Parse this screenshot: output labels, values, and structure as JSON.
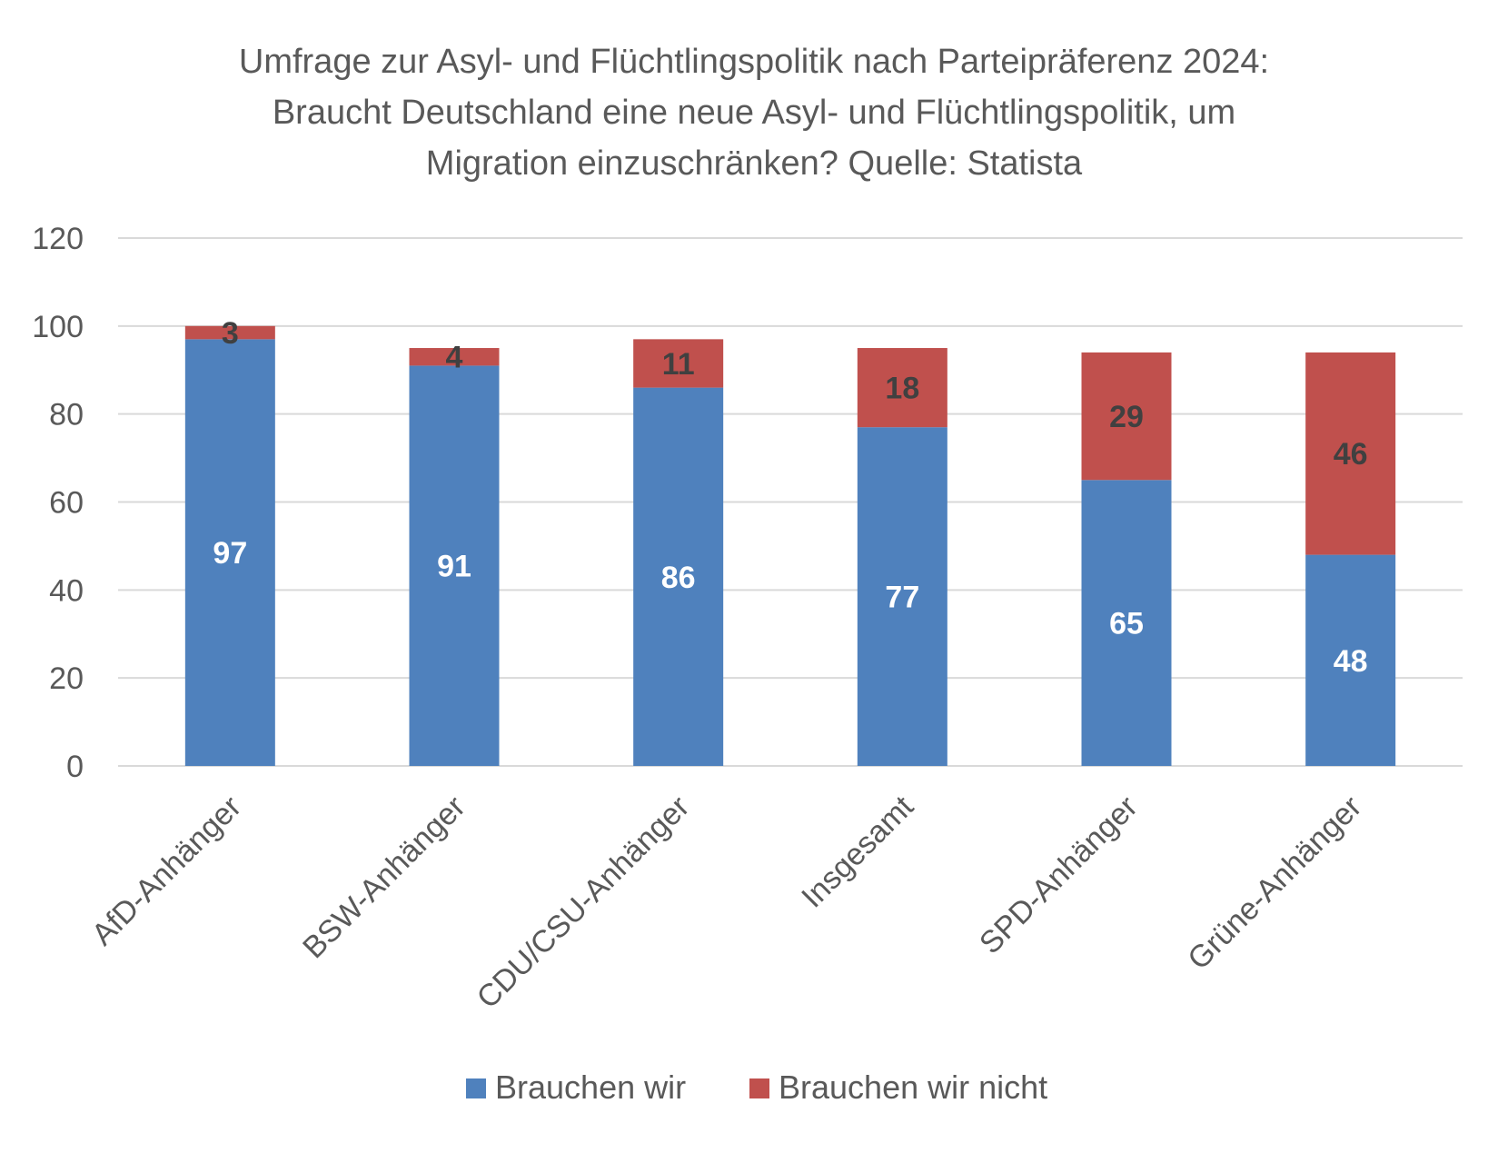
{
  "chart_data": {
    "type": "bar",
    "stacked": true,
    "title_lines": [
      "Umfrage zur Asyl- und Flüchtlingspolitik nach Parteipräferenz 2024:",
      "Braucht Deutschland eine neue Asyl- und Flüchtlingspolitik, um",
      "Migration einzuschränken? Quelle: Statista"
    ],
    "categories": [
      "AfD-Anhänger",
      "BSW-Anhänger",
      "CDU/CSU-Anhänger",
      "Insgesamt",
      "SPD-Anhänger",
      "Grüne-Anhänger"
    ],
    "series": [
      {
        "name": "Brauchen wir",
        "values": [
          97,
          91,
          86,
          77,
          65,
          48
        ],
        "color": "#4f81bd",
        "label_color": "#ffffff"
      },
      {
        "name": "Brauchen wir nicht",
        "values": [
          3,
          4,
          11,
          18,
          29,
          46
        ],
        "color": "#c0504d",
        "label_color": "#404040"
      }
    ],
    "ylim": [
      0,
      120
    ],
    "yticks": [
      0,
      20,
      40,
      60,
      80,
      100,
      120
    ],
    "grid": true,
    "legend_position": "bottom",
    "axis_color": "#d9d9d9"
  }
}
